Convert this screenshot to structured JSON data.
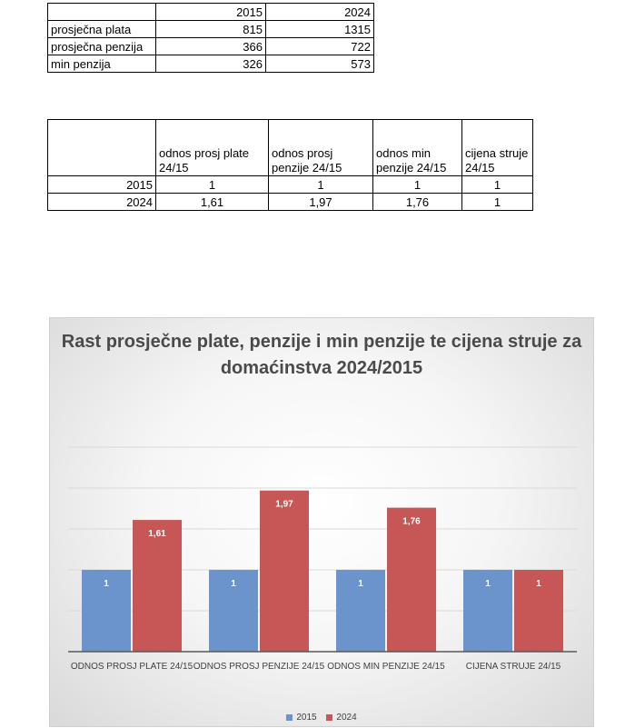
{
  "table1": {
    "header": [
      "",
      "2015",
      "2024"
    ],
    "rows": [
      [
        "prosječna plata",
        "815",
        "1315"
      ],
      [
        "prosječna penzija",
        "366",
        "722"
      ],
      [
        "min penzija",
        "326",
        "573"
      ]
    ]
  },
  "table2": {
    "header": [
      "",
      "odnos prosj plate 24/15",
      "odnos prosj penzije 24/15",
      "odnos min penzije 24/15",
      "cijena struje 24/15"
    ],
    "rows": [
      [
        "2015",
        "1",
        "1",
        "1",
        "1"
      ],
      [
        "2024",
        "1,61",
        "1,97",
        "1,76",
        "1"
      ]
    ]
  },
  "chart_data": {
    "type": "bar",
    "title": "Rast prosječne plate, penzije i min penzije te cijena struje za domaćinstva 2024/2015",
    "categories": [
      "ODNOS PROSJ PLATE 24/15",
      "ODNOS PROSJ PENZIJE 24/15",
      "ODNOS MIN PENZIJE 24/15",
      "CIJENA STRUJE 24/15"
    ],
    "series": [
      {
        "name": "2015",
        "values": [
          1,
          1,
          1,
          1
        ],
        "labels": [
          "1",
          "1",
          "1",
          "1"
        ],
        "color": "#6b93cc"
      },
      {
        "name": "2024",
        "values": [
          1.61,
          1.97,
          1.76,
          1
        ],
        "labels": [
          "1,61",
          "1,97",
          "1,76",
          "1"
        ],
        "color": "#c75756"
      }
    ],
    "ylim": [
      0,
      2.5
    ],
    "grid": true,
    "legend": "bottom",
    "xlabel": "",
    "ylabel": ""
  }
}
